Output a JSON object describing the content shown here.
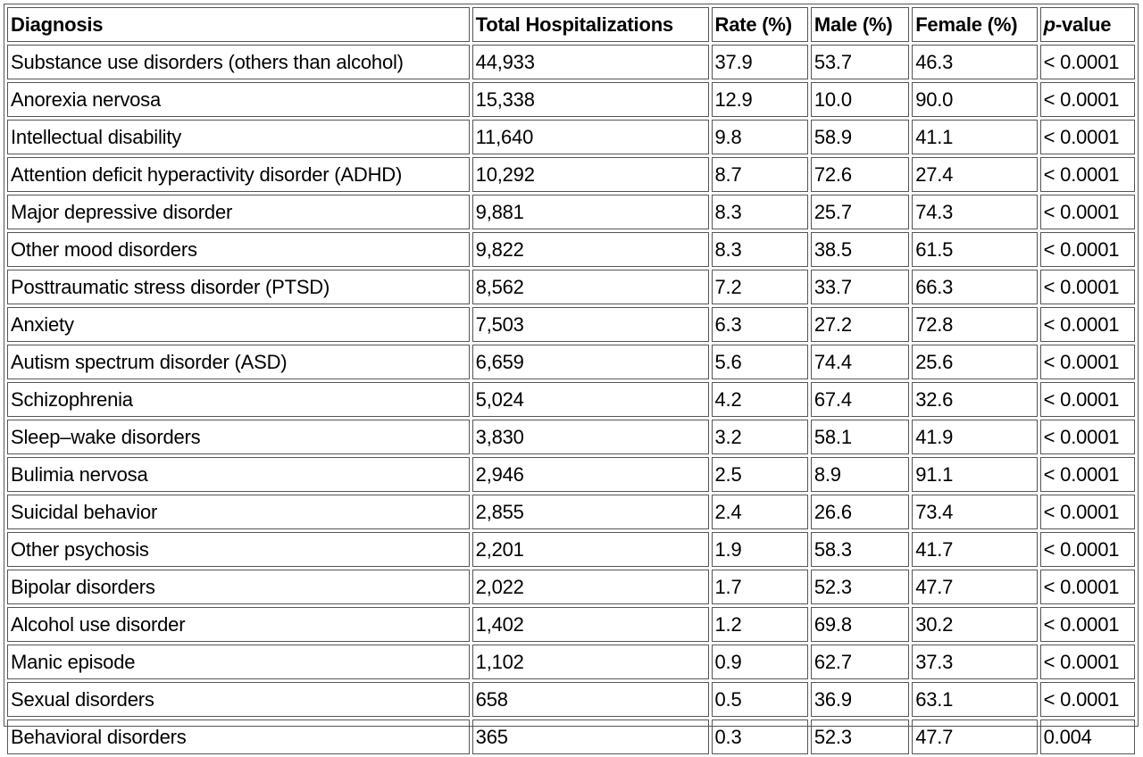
{
  "table": {
    "headers": {
      "diagnosis": "Diagnosis",
      "total": "Total Hospitalizations",
      "rate": "Rate (%)",
      "male": "Male (%)",
      "female": "Female (%)",
      "p_italic": "p",
      "p_rest": "-value"
    },
    "rows": [
      [
        "Substance use disorders (others than alcohol)",
        "44,933",
        "37.9",
        "53.7",
        "46.3",
        "< 0.0001"
      ],
      [
        "Anorexia nervosa",
        "15,338",
        "12.9",
        "10.0",
        "90.0",
        "< 0.0001"
      ],
      [
        "Intellectual disability",
        "11,640",
        "9.8",
        "58.9",
        "41.1",
        "< 0.0001"
      ],
      [
        "Attention deficit hyperactivity disorder (ADHD)",
        "10,292",
        "8.7",
        "72.6",
        "27.4",
        "< 0.0001"
      ],
      [
        "Major depressive disorder",
        "9,881",
        "8.3",
        "25.7",
        "74.3",
        "< 0.0001"
      ],
      [
        "Other mood disorders",
        "9,822",
        "8.3",
        "38.5",
        "61.5",
        "< 0.0001"
      ],
      [
        "Posttraumatic stress disorder (PTSD)",
        "8,562",
        "7.2",
        "33.7",
        "66.3",
        "< 0.0001"
      ],
      [
        "Anxiety",
        "7,503",
        "6.3",
        "27.2",
        "72.8",
        "< 0.0001"
      ],
      [
        "Autism spectrum disorder (ASD)",
        "6,659",
        "5.6",
        "74.4",
        "25.6",
        "< 0.0001"
      ],
      [
        "Schizophrenia",
        "5,024",
        "4.2",
        "67.4",
        "32.6",
        "< 0.0001"
      ],
      [
        "Sleep–wake disorders",
        "3,830",
        "3.2",
        "58.1",
        "41.9",
        "< 0.0001"
      ],
      [
        "Bulimia nervosa",
        "2,946",
        "2.5",
        "8.9",
        "91.1",
        "< 0.0001"
      ],
      [
        "Suicidal behavior",
        "2,855",
        "2.4",
        "26.6",
        "73.4",
        "< 0.0001"
      ],
      [
        "Other psychosis",
        "2,201",
        "1.9",
        "58.3",
        "41.7",
        "< 0.0001"
      ],
      [
        "Bipolar disorders",
        "2,022",
        "1.7",
        "52.3",
        "47.7",
        "< 0.0001"
      ],
      [
        "Alcohol use disorder",
        "1,402",
        "1.2",
        "69.8",
        "30.2",
        "< 0.0001"
      ],
      [
        "Manic episode",
        "1,102",
        "0.9",
        "62.7",
        "37.3",
        "< 0.0001"
      ],
      [
        "Sexual disorders",
        "658",
        "0.5",
        "36.9",
        "63.1",
        "< 0.0001"
      ],
      [
        "Behavioral disorders",
        "365",
        "0.3",
        "52.3",
        "47.7",
        "0.004"
      ]
    ]
  }
}
